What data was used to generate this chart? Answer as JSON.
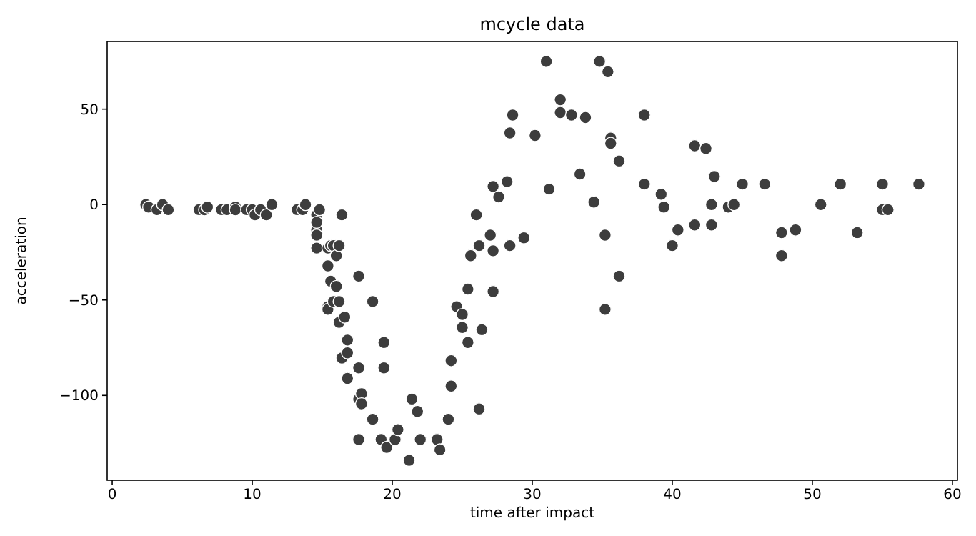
{
  "chart_data": {
    "type": "scatter",
    "title": "mcycle data",
    "xlabel": "time after impact",
    "ylabel": "acceleration",
    "x": [
      2.4,
      2.6,
      3.2,
      3.6,
      4.0,
      6.2,
      6.6,
      6.8,
      7.8,
      8.2,
      8.8,
      8.8,
      9.6,
      10.0,
      10.2,
      10.6,
      11.0,
      11.4,
      13.2,
      13.6,
      13.8,
      14.6,
      14.6,
      14.6,
      14.6,
      14.6,
      14.8,
      15.4,
      15.4,
      15.4,
      15.4,
      15.6,
      15.6,
      15.8,
      15.8,
      16.0,
      16.0,
      16.2,
      16.2,
      16.2,
      16.4,
      16.4,
      16.6,
      16.8,
      16.8,
      16.8,
      17.6,
      17.6,
      17.6,
      17.6,
      17.8,
      17.8,
      18.6,
      18.6,
      19.2,
      19.4,
      19.4,
      19.6,
      20.2,
      20.4,
      21.2,
      21.4,
      21.8,
      22.0,
      23.2,
      23.4,
      24.0,
      24.2,
      24.2,
      24.6,
      25.0,
      25.0,
      25.4,
      25.4,
      25.6,
      26.0,
      26.2,
      26.2,
      26.4,
      27.0,
      27.2,
      27.2,
      27.2,
      27.6,
      28.2,
      28.4,
      28.4,
      28.6,
      29.4,
      30.2,
      31.0,
      31.2,
      32.0,
      32.0,
      32.8,
      33.4,
      33.8,
      34.4,
      34.8,
      35.2,
      35.2,
      35.4,
      35.6,
      35.6,
      36.2,
      36.2,
      38.0,
      38.0,
      39.2,
      39.4,
      40.0,
      40.4,
      41.6,
      41.6,
      42.4,
      42.8,
      42.8,
      43.0,
      44.0,
      44.4,
      45.0,
      46.6,
      47.8,
      47.8,
      48.8,
      50.6,
      52.0,
      53.2,
      55.0,
      55.0,
      55.4,
      57.6
    ],
    "series": [
      {
        "color": "#3d3d3d",
        "values": [
          0.0,
          -1.3,
          -2.7,
          0.0,
          -2.7,
          -2.7,
          -2.7,
          -1.3,
          -2.7,
          -2.7,
          -1.3,
          -2.7,
          -2.7,
          -2.7,
          -5.4,
          -2.7,
          -5.4,
          0.0,
          -2.7,
          -2.7,
          0.0,
          -13.3,
          -5.4,
          -9.3,
          -16.0,
          -22.8,
          -2.7,
          -22.8,
          -32.1,
          -53.5,
          -54.9,
          -40.2,
          -21.5,
          -21.5,
          -50.8,
          -42.9,
          -26.8,
          -21.5,
          -50.8,
          -61.7,
          -5.4,
          -80.4,
          -59.0,
          -71.0,
          -91.1,
          -77.7,
          -37.5,
          -85.6,
          -123.1,
          -101.9,
          -99.1,
          -104.4,
          -112.5,
          -50.8,
          -123.1,
          -85.6,
          -72.3,
          -127.2,
          -123.1,
          -117.9,
          -134.0,
          -101.9,
          -108.4,
          -123.1,
          -123.1,
          -128.5,
          -112.5,
          -95.1,
          -81.8,
          -53.5,
          -64.4,
          -57.6,
          -72.3,
          -44.3,
          -26.8,
          -5.4,
          -107.1,
          -21.5,
          -65.6,
          -16.0,
          -45.6,
          -24.2,
          9.5,
          4.0,
          12.0,
          -21.5,
          37.5,
          46.9,
          -17.4,
          36.2,
          75.0,
          8.1,
          54.9,
          48.2,
          46.9,
          16.0,
          45.6,
          1.3,
          75.0,
          -16.0,
          -54.9,
          69.6,
          34.8,
          32.1,
          -37.5,
          22.8,
          46.9,
          10.7,
          5.4,
          -1.3,
          -21.5,
          -13.3,
          30.8,
          -10.7,
          29.4,
          0.0,
          -10.7,
          14.7,
          -1.3,
          0.0,
          10.7,
          10.7,
          -26.8,
          -14.7,
          -13.3,
          0.0,
          10.7,
          -14.7,
          -2.7,
          10.7,
          -2.7,
          10.7
        ]
      }
    ],
    "xlim": [
      -0.36,
      60.36
    ],
    "xticks": [
      0,
      10,
      20,
      30,
      40,
      50,
      60
    ],
    "ylim": [
      -144.45,
      85.45
    ],
    "yticks": [
      -100,
      -50,
      0,
      50
    ],
    "marker": "circle",
    "grid": false
  }
}
